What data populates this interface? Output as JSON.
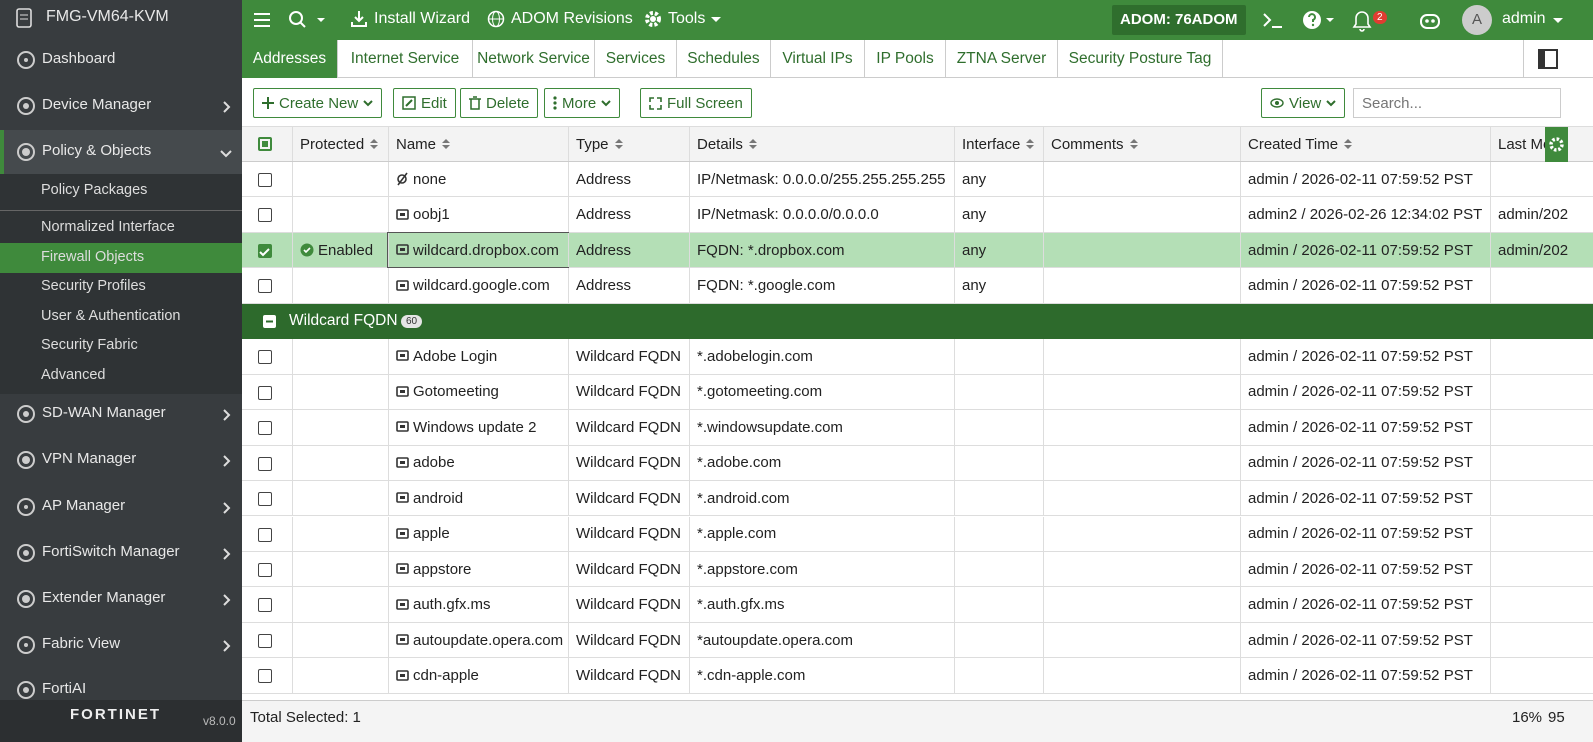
{
  "sidebar": {
    "device": "FMG-VM64-KVM",
    "nav_top": [
      "Dashboard",
      "Device Manager",
      "Policy & Objects"
    ],
    "nav_sub": [
      "Policy Packages",
      "Normalized Interface",
      "Firewall Objects",
      "Security Profiles",
      "User & Authentication",
      "Security Fabric",
      "Advanced"
    ],
    "nav_bottom": [
      "SD-WAN Manager",
      "VPN Manager",
      "AP Manager",
      "FortiSwitch Manager",
      "Extender Manager",
      "Fabric View",
      "FortiAI"
    ],
    "brand": "FORTINET",
    "version": "v8.0.0"
  },
  "topbar": {
    "install_wizard": "Install Wizard",
    "adom_revisions": "ADOM Revisions",
    "tools": "Tools",
    "adom": "ADOM: 76ADOM",
    "notifications": 2,
    "avatar": "A",
    "user": "admin"
  },
  "tabs": [
    "Addresses",
    "Internet Service",
    "Network Service",
    "Services",
    "Schedules",
    "Virtual IPs",
    "IP Pools",
    "ZTNA Server",
    "Security Posture Tag"
  ],
  "toolbar": {
    "create_new": "Create New",
    "edit": "Edit",
    "delete": "Delete",
    "more": "More",
    "full_screen": "Full Screen",
    "view": "View",
    "search_placeholder": "Search..."
  },
  "table": {
    "columns": [
      "Protected",
      "Name",
      "Type",
      "Details",
      "Interface",
      "Comments",
      "Created Time",
      "Last Mo"
    ],
    "rows": [
      {
        "name": "none",
        "type": "Address",
        "details": "IP/Netmask: 0.0.0.0/255.255.255.255",
        "interface": "any",
        "created": "admin / 2026-02-11 07:59:52 PST"
      },
      {
        "name": "oobj1",
        "type": "Address",
        "details": "IP/Netmask: 0.0.0.0/0.0.0.0",
        "interface": "any",
        "created": "admin2 / 2026-02-26 12:34:02 PST",
        "modified": "admin/202"
      },
      {
        "checked": true,
        "protected": "Enabled",
        "name": "wildcard.dropbox.com",
        "type": "Address",
        "details": "FQDN: *.dropbox.com",
        "interface": "any",
        "created": "admin / 2026-02-11 07:59:52 PST",
        "modified": "admin/202"
      },
      {
        "name": "wildcard.google.com",
        "type": "Address",
        "details": "FQDN: *.google.com",
        "interface": "any",
        "created": "admin / 2026-02-11 07:59:52 PST"
      },
      {
        "group": "Wildcard FQDN",
        "count": 60
      },
      {
        "name": "Adobe Login",
        "type": "Wildcard FQDN",
        "details": "*.adobelogin.com",
        "created": "admin / 2026-02-11 07:59:52 PST"
      },
      {
        "name": "Gotomeeting",
        "type": "Wildcard FQDN",
        "details": "*.gotomeeting.com",
        "created": "admin / 2026-02-11 07:59:52 PST"
      },
      {
        "name": "Windows update 2",
        "type": "Wildcard FQDN",
        "details": "*.windowsupdate.com",
        "created": "admin / 2026-02-11 07:59:52 PST"
      },
      {
        "name": "adobe",
        "type": "Wildcard FQDN",
        "details": "*.adobe.com",
        "created": "admin / 2026-02-11 07:59:52 PST"
      },
      {
        "name": "android",
        "type": "Wildcard FQDN",
        "details": "*.android.com",
        "created": "admin / 2026-02-11 07:59:52 PST"
      },
      {
        "name": "apple",
        "type": "Wildcard FQDN",
        "details": "*.apple.com",
        "created": "admin / 2026-02-11 07:59:52 PST"
      },
      {
        "name": "appstore",
        "type": "Wildcard FQDN",
        "details": "*.appstore.com",
        "created": "admin / 2026-02-11 07:59:52 PST"
      },
      {
        "name": "auth.gfx.ms",
        "type": "Wildcard FQDN",
        "details": "*.auth.gfx.ms",
        "created": "admin / 2026-02-11 07:59:52 PST"
      },
      {
        "name": "autoupdate.opera.com",
        "type": "Wildcard FQDN",
        "details": "*autoupdate.opera.com",
        "created": "admin / 2026-02-11 07:59:52 PST"
      },
      {
        "name": "cdn-apple",
        "type": "Wildcard FQDN",
        "details": "*.cdn-apple.com",
        "created": "admin / 2026-02-11 07:59:52 PST"
      }
    ]
  },
  "status": {
    "total_selected": "Total Selected: 1",
    "percent": "16%",
    "count": "95"
  }
}
